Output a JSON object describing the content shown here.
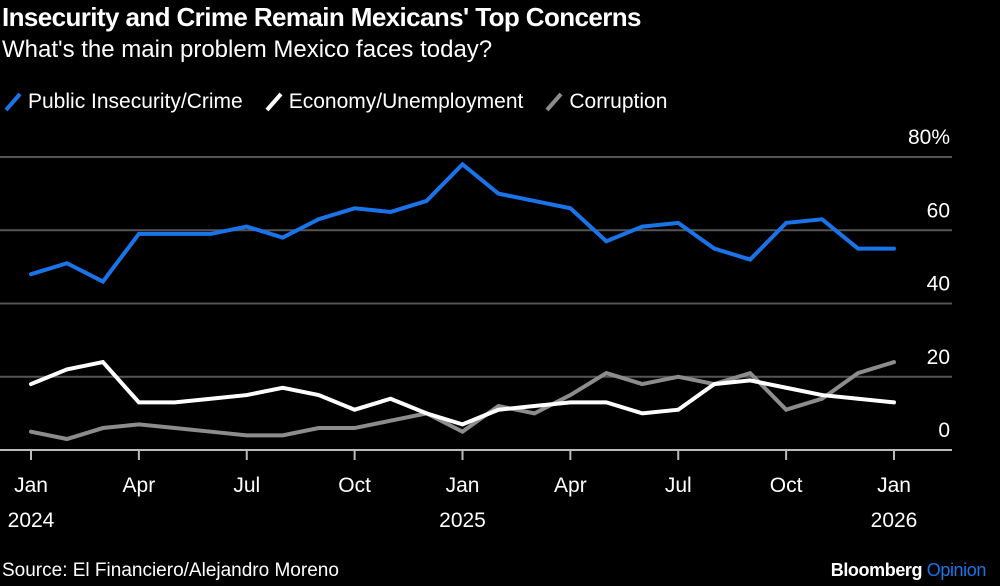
{
  "chart_data": {
    "type": "line",
    "title": "Insecurity and Crime Remain Mexicans' Top Concerns",
    "subtitle": "What's the main problem Mexico faces today?",
    "x": [
      "2024-01",
      "2024-02",
      "2024-03",
      "2024-04",
      "2024-05",
      "2024-06",
      "2024-07",
      "2024-08",
      "2024-09",
      "2024-10",
      "2024-11",
      "2024-12",
      "2025-01",
      "2025-02",
      "2025-03",
      "2025-04",
      "2025-05",
      "2025-06",
      "2025-07",
      "2025-08",
      "2025-09",
      "2025-10",
      "2025-11",
      "2025-12",
      "2026-01"
    ],
    "series": [
      {
        "name": "Public Insecurity/Crime",
        "color": "#1a73e8",
        "values": [
          48,
          51,
          46,
          59,
          59,
          59,
          61,
          58,
          63,
          66,
          65,
          68,
          78,
          70,
          68,
          66,
          57,
          61,
          62,
          55,
          52,
          62,
          63,
          55,
          55
        ]
      },
      {
        "name": "Economy/Unemployment",
        "color": "#ffffff",
        "values": [
          18,
          22,
          24,
          13,
          13,
          14,
          15,
          17,
          15,
          11,
          14,
          10,
          7,
          11,
          12,
          13,
          13,
          10,
          11,
          18,
          19,
          17,
          15,
          14,
          13
        ]
      },
      {
        "name": "Corruption",
        "color": "#8c8c8c",
        "values": [
          5,
          3,
          6,
          7,
          6,
          5,
          4,
          4,
          6,
          6,
          8,
          10,
          5,
          12,
          10,
          15,
          21,
          18,
          20,
          18,
          21,
          11,
          14,
          21,
          24
        ]
      }
    ],
    "ylim": [
      0,
      80
    ],
    "y_ticks": [
      "0",
      "20",
      "40",
      "60",
      "80%"
    ],
    "y_axis_side": "right",
    "grid": true,
    "x_ticks": [
      {
        "month": "Jan",
        "year": "2024",
        "index": 0
      },
      {
        "month": "Apr",
        "year": "",
        "index": 3
      },
      {
        "month": "Jul",
        "year": "",
        "index": 6
      },
      {
        "month": "Oct",
        "year": "",
        "index": 9
      },
      {
        "month": "Jan",
        "year": "2025",
        "index": 12
      },
      {
        "month": "Apr",
        "year": "",
        "index": 15
      },
      {
        "month": "Jul",
        "year": "",
        "index": 18
      },
      {
        "month": "Oct",
        "year": "",
        "index": 21
      },
      {
        "month": "Jan",
        "year": "2026",
        "index": 24
      }
    ],
    "legend_placement": "top-left"
  },
  "footer": {
    "source": "Source: El Financiero/Alejandro Moreno",
    "brand_main": "Bloomberg",
    "brand_accent": "Opinion",
    "brand_accent_color": "#1a73e8"
  }
}
